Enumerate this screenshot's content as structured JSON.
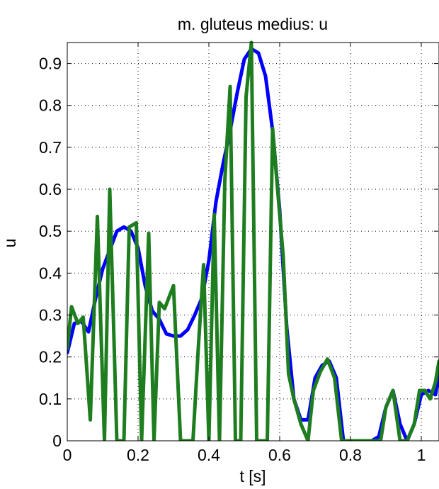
{
  "chart_data": {
    "type": "line",
    "title": "m. gluteus medius: u",
    "xlabel": "t  [s]",
    "ylabel": "u",
    "xlim": [
      0,
      1.05
    ],
    "ylim": [
      0,
      0.95
    ],
    "xticks": [
      0,
      0.2,
      0.4,
      0.6,
      0.8,
      1
    ],
    "xtick_labels": [
      "0",
      "0.2",
      "0.4",
      "0.6",
      "0.8",
      "1"
    ],
    "yticks": [
      0,
      0.1,
      0.2,
      0.3,
      0.4,
      0.5,
      0.6,
      0.7,
      0.8,
      0.9
    ],
    "ytick_labels": [
      "0",
      "0.1",
      "0.2",
      "0.3",
      "0.4",
      "0.5",
      "0.6",
      "0.7",
      "0.8",
      "0.9"
    ],
    "grid": true,
    "series": [
      {
        "color": "#0000ff",
        "x": [
          0,
          0.02,
          0.04,
          0.06,
          0.08,
          0.1,
          0.12,
          0.14,
          0.16,
          0.18,
          0.2,
          0.22,
          0.24,
          0.26,
          0.28,
          0.3,
          0.32,
          0.34,
          0.36,
          0.38,
          0.4,
          0.42,
          0.44,
          0.46,
          0.48,
          0.5,
          0.52,
          0.54,
          0.56,
          0.58,
          0.6,
          0.62,
          0.64,
          0.66,
          0.68,
          0.7,
          0.72,
          0.74,
          0.76,
          0.78,
          0.8,
          0.82,
          0.84,
          0.86,
          0.88,
          0.9,
          0.92,
          0.94,
          0.96,
          0.98,
          1.0,
          1.02,
          1.04,
          1.05
        ],
        "y": [
          0.21,
          0.28,
          0.285,
          0.26,
          0.34,
          0.41,
          0.455,
          0.5,
          0.51,
          0.5,
          0.46,
          0.37,
          0.31,
          0.29,
          0.255,
          0.25,
          0.25,
          0.265,
          0.3,
          0.34,
          0.43,
          0.57,
          0.66,
          0.74,
          0.83,
          0.91,
          0.935,
          0.925,
          0.87,
          0.74,
          0.55,
          0.27,
          0.1,
          0.05,
          0.05,
          0.15,
          0.18,
          0.19,
          0.15,
          0.0,
          0.0,
          0.0,
          0.0,
          0.0,
          0.01,
          0.08,
          0.12,
          0.04,
          0.0,
          0.04,
          0.11,
          0.12,
          0.11,
          0.16
        ]
      },
      {
        "color": "#1e7d1e",
        "x": [
          0,
          0.012,
          0.03,
          0.045,
          0.065,
          0.085,
          0.105,
          0.12,
          0.14,
          0.16,
          0.175,
          0.195,
          0.21,
          0.23,
          0.245,
          0.26,
          0.275,
          0.3,
          0.32,
          0.335,
          0.355,
          0.37,
          0.385,
          0.4,
          0.415,
          0.43,
          0.445,
          0.46,
          0.475,
          0.49,
          0.505,
          0.52,
          0.535,
          0.55,
          0.565,
          0.58,
          0.595,
          0.61,
          0.625,
          0.64,
          0.66,
          0.68,
          0.695,
          0.715,
          0.735,
          0.755,
          0.775,
          0.8,
          0.825,
          0.85,
          0.87,
          0.885,
          0.9,
          0.92,
          0.94,
          0.96,
          0.98,
          0.995,
          1.01,
          1.025,
          1.04,
          1.05
        ],
        "y": [
          0.22,
          0.32,
          0.28,
          0.295,
          0.05,
          0.535,
          0.0,
          0.6,
          0.0,
          0.0,
          0.51,
          0.52,
          0.0,
          0.495,
          0.0,
          0.33,
          0.315,
          0.37,
          0.0,
          0.0,
          0.0,
          0.22,
          0.42,
          0.0,
          0.54,
          0.0,
          0.62,
          0.845,
          0.0,
          0.0,
          0.82,
          0.95,
          0.0,
          0.0,
          0.0,
          0.745,
          0.59,
          0.44,
          0.16,
          0.1,
          0.04,
          0.0,
          0.12,
          0.165,
          0.195,
          0.15,
          0.0,
          0.0,
          0.0,
          0.0,
          0.0,
          0.0,
          0.08,
          0.12,
          0.0,
          0.0,
          0.04,
          0.12,
          0.12,
          0.1,
          0.14,
          0.19
        ]
      }
    ]
  }
}
